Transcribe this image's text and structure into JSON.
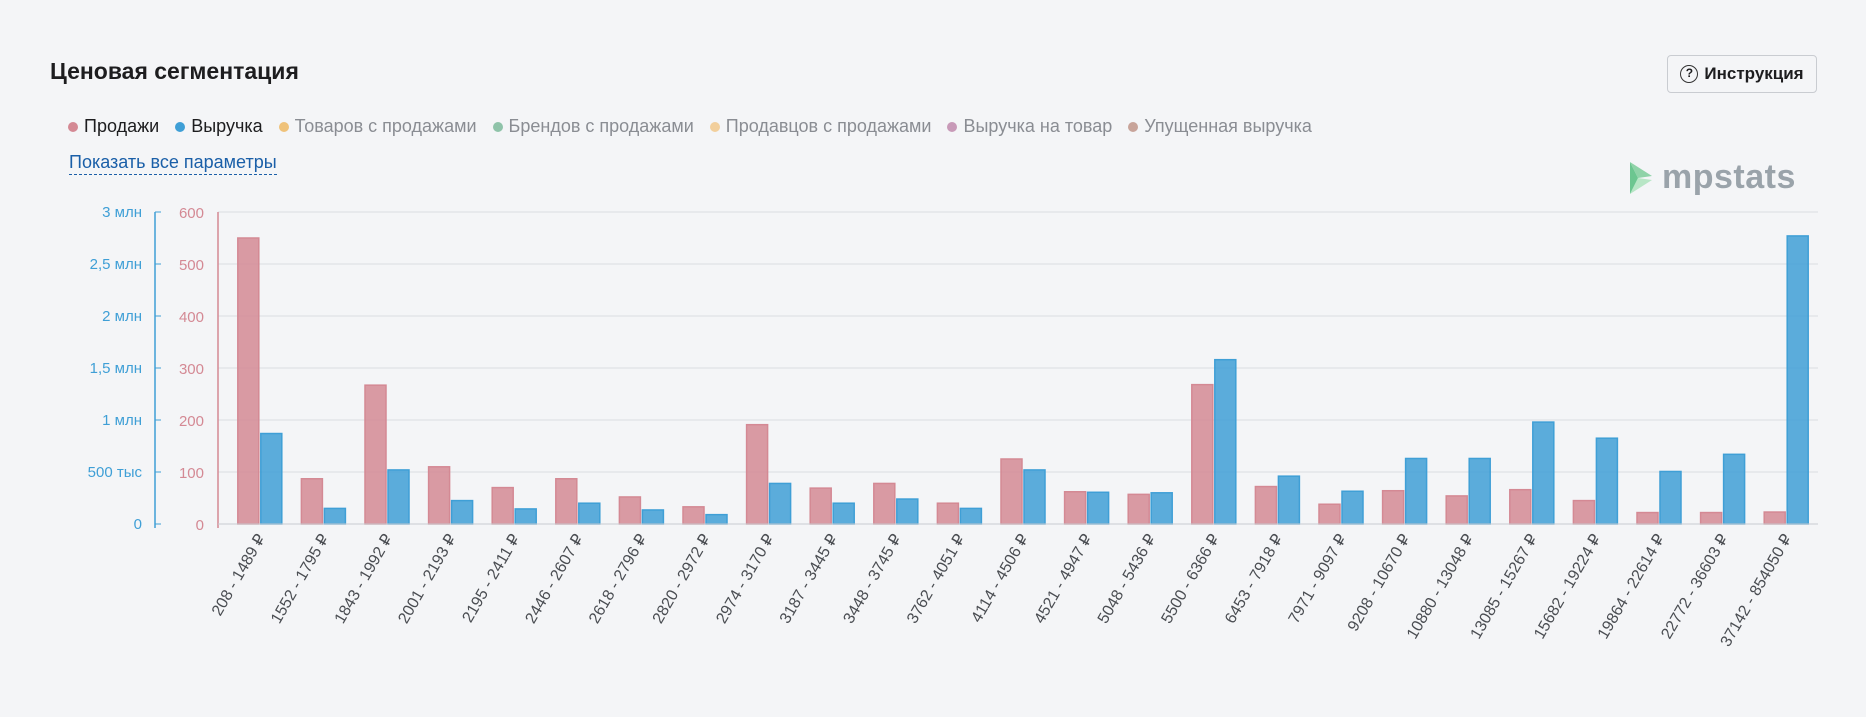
{
  "header": {
    "title": "Ценовая сегментация",
    "instruction_label": "Инструкция"
  },
  "legend": [
    {
      "label": "Продажи",
      "color": "#d48994",
      "active": true
    },
    {
      "label": "Выручка",
      "color": "#3f9fd6",
      "active": true
    },
    {
      "label": "Товаров с продажами",
      "color": "#efc27a",
      "active": false
    },
    {
      "label": "Брендов с продажами",
      "color": "#8fc3a9",
      "active": false
    },
    {
      "label": "Продавцов с продажами",
      "color": "#f2cf9c",
      "active": false
    },
    {
      "label": "Выручка на товар",
      "color": "#c89ab8",
      "active": false
    },
    {
      "label": "Упущенная выручка",
      "color": "#c8a49a",
      "active": false
    }
  ],
  "show_all_label": "Показать все параметры",
  "logo_text": "mpstats",
  "chart_data": {
    "type": "bar",
    "categories": [
      "208 - 1489 ₽",
      "1552 - 1795 ₽",
      "1843 - 1992 ₽",
      "2001 - 2193 ₽",
      "2195 - 2411 ₽",
      "2446 - 2607 ₽",
      "2618 - 2796 ₽",
      "2820 - 2972 ₽",
      "2974 - 3170 ₽",
      "3187 - 3445 ₽",
      "3448 - 3745 ₽",
      "3762 - 4051 ₽",
      "4114 - 4506 ₽",
      "4521 - 4947 ₽",
      "5048 - 5436 ₽",
      "5500 - 6366 ₽",
      "6453 - 7918 ₽",
      "7971 - 9097 ₽",
      "9208 - 10670 ₽",
      "10880 - 13048 ₽",
      "13085 - 15267 ₽",
      "15682 - 19224 ₽",
      "19864 - 22614 ₽",
      "22772 - 36603 ₽",
      "37142 - 854050 ₽"
    ],
    "series": [
      {
        "name": "Продажи",
        "axis": "right",
        "color": "#d48994",
        "values": [
          550,
          87,
          267,
          110,
          70,
          87,
          52,
          33,
          191,
          69,
          78,
          40,
          125,
          62,
          57,
          268,
          72,
          38,
          64,
          54,
          66,
          45,
          22,
          22,
          23
        ]
      },
      {
        "name": "Выручка",
        "axis": "left",
        "color": "#3f9fd6",
        "values": [
          870000,
          150000,
          520000,
          225000,
          145000,
          200000,
          135000,
          90000,
          390000,
          200000,
          240000,
          150000,
          520000,
          305000,
          300000,
          1580000,
          460000,
          315000,
          630000,
          630000,
          980000,
          825000,
          505000,
          670000,
          2770000
        ]
      }
    ],
    "y_axes": {
      "left": {
        "ticks": [
          {
            "value": 0,
            "label": "0"
          },
          {
            "value": 500000,
            "label": "500 тыс"
          },
          {
            "value": 1000000,
            "label": "1 млн"
          },
          {
            "value": 1500000,
            "label": "1,5 млн"
          },
          {
            "value": 2000000,
            "label": "2 млн"
          },
          {
            "value": 2500000,
            "label": "2,5 млн"
          },
          {
            "value": 3000000,
            "label": "3 млн"
          }
        ],
        "min": 0,
        "max": 3000000,
        "color": "#3f9fd6"
      },
      "right": {
        "ticks": [
          {
            "value": 0,
            "label": "0"
          },
          {
            "value": 100,
            "label": "100"
          },
          {
            "value": 200,
            "label": "200"
          },
          {
            "value": 300,
            "label": "300"
          },
          {
            "value": 400,
            "label": "400"
          },
          {
            "value": 500,
            "label": "500"
          },
          {
            "value": 600,
            "label": "600"
          }
        ],
        "min": 0,
        "max": 600,
        "color": "#d48994"
      }
    },
    "grid": true
  }
}
